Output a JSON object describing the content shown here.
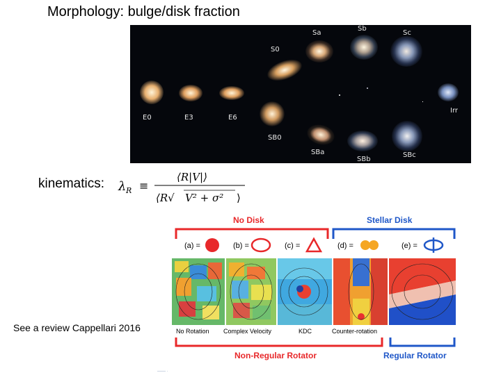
{
  "slide": {
    "title": "Morphology: bulge/disk fraction",
    "kinematics_label": "kinematics:",
    "formula": {
      "lhs": "λ",
      "lhs_sub": "R",
      "equiv": "≡",
      "numerator": "⟨R|V|⟩",
      "denominator_prefix": "⟨R√",
      "denominator_rad": "V² + σ²",
      "denominator_suffix": "⟩"
    },
    "review_note": "See a review Cappellari 2016",
    "bottom_text": "—— ·"
  },
  "hubble": {
    "labels": [
      "E0",
      "E3",
      "E6",
      "S0",
      "Sa",
      "Sb",
      "Sc",
      "SB0",
      "SBa",
      "SBb",
      "SBc",
      "Irr"
    ]
  },
  "kinematics_panel": {
    "header_left": "No Disk",
    "header_right": "Stellar Disk",
    "symbols": [
      "(a) =",
      "(b) =",
      "(c) =",
      "(d) =",
      "(e) ="
    ],
    "map_labels": [
      "No Rotation",
      "Complex Velocity",
      "KDC",
      "Counter-rotation"
    ],
    "footer_left": "Non-Regular Rotator",
    "footer_right": "Regular Rotator",
    "colors": {
      "red": "#e8282a",
      "blue": "#1f57c8",
      "orange": "#f5a623"
    }
  }
}
